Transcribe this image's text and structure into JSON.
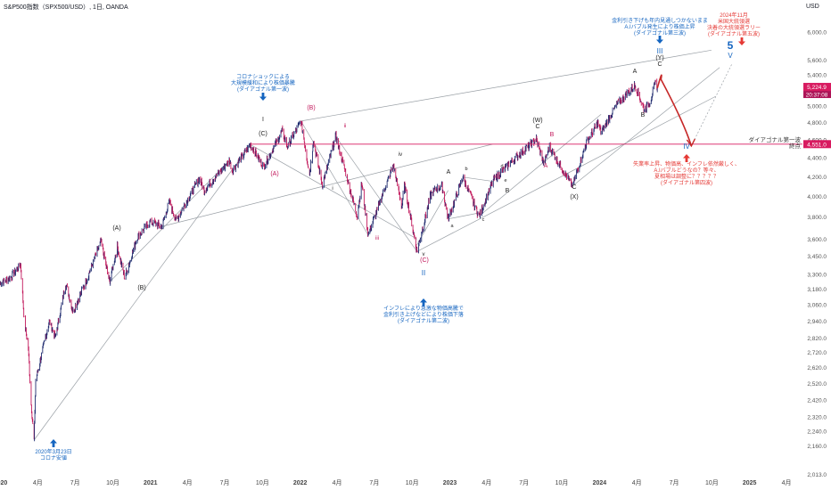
{
  "header": {
    "title": "S&P500指数（SPX500/USD）, 1日, OANDA",
    "currency": "USD"
  },
  "colors": {
    "candle_up": "#1e2a6e",
    "candle_down": "#c2185b",
    "horizontal_line": "#d81b60",
    "blue_annotation": "#1565c0",
    "red_annotation": "#e53935",
    "wave_line": "#c2185b",
    "gray_line": "#9aa0a6"
  },
  "price_badges": {
    "current": "5,224.9",
    "countdown": "20:37:08",
    "level": "4,551.0"
  },
  "line_label": "ダイアゴナル第一波\n終点",
  "annotations": [
    {
      "id": "covid",
      "lines": [
        "2020年3月23日",
        "コロナ安値"
      ],
      "color": "blue"
    },
    {
      "id": "wave1",
      "lines": [
        "コロナショックによる",
        "大規模緩和により株価暴騰",
        "(ダイアゴナル第一波)"
      ],
      "color": "blue"
    },
    {
      "id": "wave2",
      "lines": [
        "インフレにより急激な物価高騰で",
        "金利引き上げなどにより株価下落",
        "(ダイアゴナル第二波)"
      ],
      "color": "blue"
    },
    {
      "id": "wave3",
      "lines": [
        "金利引き下げも年内見通しつかないまま",
        "A.Iバブル発生により株価上昇",
        "(ダイアゴナル第三波)"
      ],
      "color": "blue"
    },
    {
      "id": "wave4",
      "lines": [
        "失業率上昇、物価高、インフレ依然厳しく、",
        "A.Iバブルどうなの？等々、",
        "夏相場は調整に？？？？？",
        "(ダイアゴナル第四波)"
      ],
      "color": "red"
    },
    {
      "id": "wave5",
      "lines": [
        "2024年11月",
        "米国大統領選",
        "決着の大統領選ラリー",
        "(ダイアゴナル第五波)"
      ],
      "color": "red"
    }
  ],
  "wave_labels": [
    "(A)",
    "(B)",
    "I",
    "(C)",
    "(A)",
    "(B)",
    "i",
    "ii",
    "iii",
    "iv",
    "v",
    "(C)",
    "II",
    "A",
    "b",
    "a",
    "c",
    "d",
    "e",
    "B",
    "(W)",
    "C",
    "B",
    "A",
    "C",
    "(X)",
    "A",
    "B",
    "III",
    "(Y)",
    "C",
    "IV",
    "5",
    "V"
  ],
  "chart_data": {
    "type": "line",
    "title": "S&P500指数（SPX500/USD）, 1日, OANDA",
    "ylabel": "USD",
    "y_scale": "log",
    "ylim": [
      1980,
      6300
    ],
    "xlim": [
      "2019-12-31",
      "2025-05-10"
    ],
    "yticks": [
      2013.0,
      2160.0,
      2240.0,
      2320.0,
      2420.0,
      2520.0,
      2620.0,
      2720.0,
      2820.0,
      2940.0,
      3060.0,
      3180.0,
      3300.0,
      3450.0,
      3600.0,
      3800.0,
      4000.0,
      4200.0,
      4400.0,
      4600.0,
      4800.0,
      5000.0,
      5200.0,
      5400.0,
      5600.0,
      6000.0
    ],
    "ytick_labels": [
      "2,013.0",
      "2,160.0",
      "2,240.0",
      "2,320.0",
      "2,420.0",
      "2,520.0",
      "2,620.0",
      "2,720.0",
      "2,820.0",
      "2,940.0",
      "3,060.0",
      "3,180.0",
      "3,300.0",
      "3,450.0",
      "3,600.0",
      "3,800.0",
      "4,000.0",
      "4,200.0",
      "4,400.0",
      "4,600.0",
      "4,800.0",
      "5,000.0",
      "5,200.0",
      "5,400.0",
      "5,600.0",
      "6,000.0"
    ],
    "xticks": [
      {
        "date": "2020-01-01",
        "label": "2020",
        "bold": true
      },
      {
        "date": "2020-04-01",
        "label": "4月",
        "bold": false
      },
      {
        "date": "2020-07-01",
        "label": "7月",
        "bold": false
      },
      {
        "date": "2020-10-01",
        "label": "10月",
        "bold": false
      },
      {
        "date": "2021-01-01",
        "label": "2021",
        "bold": true
      },
      {
        "date": "2021-04-01",
        "label": "4月",
        "bold": false
      },
      {
        "date": "2021-07-01",
        "label": "7月",
        "bold": false
      },
      {
        "date": "2021-10-01",
        "label": "10月",
        "bold": false
      },
      {
        "date": "2022-01-01",
        "label": "2022",
        "bold": true
      },
      {
        "date": "2022-04-01",
        "label": "4月",
        "bold": false
      },
      {
        "date": "2022-07-01",
        "label": "7月",
        "bold": false
      },
      {
        "date": "2022-10-01",
        "label": "10月",
        "bold": false
      },
      {
        "date": "2023-01-01",
        "label": "2023",
        "bold": true
      },
      {
        "date": "2023-04-01",
        "label": "4月",
        "bold": false
      },
      {
        "date": "2023-07-01",
        "label": "7月",
        "bold": false
      },
      {
        "date": "2023-10-01",
        "label": "10月",
        "bold": false
      },
      {
        "date": "2024-01-01",
        "label": "2024",
        "bold": true
      },
      {
        "date": "2024-04-01",
        "label": "4月",
        "bold": false
      },
      {
        "date": "2024-07-01",
        "label": "7月",
        "bold": false
      },
      {
        "date": "2024-10-01",
        "label": "10月",
        "bold": false
      },
      {
        "date": "2025-01-01",
        "label": "2025",
        "bold": true
      },
      {
        "date": "2025-04-01",
        "label": "4月",
        "bold": false
      }
    ],
    "price_path": [
      [
        "2019-12-31",
        3230
      ],
      [
        "2020-01-28",
        3280
      ],
      [
        "2020-02-19",
        3386
      ],
      [
        "2020-02-28",
        2950
      ],
      [
        "2020-03-09",
        2750
      ],
      [
        "2020-03-16",
        2390
      ],
      [
        "2020-03-23",
        2191
      ],
      [
        "2020-03-27",
        2540
      ],
      [
        "2020-04-29",
        2940
      ],
      [
        "2020-05-14",
        2820
      ],
      [
        "2020-06-08",
        3232
      ],
      [
        "2020-06-26",
        3010
      ],
      [
        "2020-07-31",
        3270
      ],
      [
        "2020-09-02",
        3580
      ],
      [
        "2020-09-23",
        3237
      ],
      [
        "2020-10-12",
        3530
      ],
      [
        "2020-10-30",
        3270
      ],
      [
        "2020-11-30",
        3620
      ],
      [
        "2020-12-31",
        3756
      ],
      [
        "2021-01-29",
        3714
      ],
      [
        "2021-02-16",
        3950
      ],
      [
        "2021-03-04",
        3770
      ],
      [
        "2021-04-30",
        4180
      ],
      [
        "2021-05-12",
        4063
      ],
      [
        "2021-07-13",
        4370
      ],
      [
        "2021-07-19",
        4260
      ],
      [
        "2021-09-02",
        4545
      ],
      [
        "2021-10-04",
        4300
      ],
      [
        "2021-11-18",
        4700
      ],
      [
        "2021-12-01",
        4520
      ],
      [
        "2022-01-03",
        4818
      ],
      [
        "2022-01-24",
        4222
      ],
      [
        "2022-02-02",
        4590
      ],
      [
        "2022-02-24",
        4114
      ],
      [
        "2022-03-29",
        4637
      ],
      [
        "2022-05-20",
        3810
      ],
      [
        "2022-05-31",
        4130
      ],
      [
        "2022-06-16",
        3636
      ],
      [
        "2022-08-16",
        4325
      ],
      [
        "2022-09-06",
        3900
      ],
      [
        "2022-09-12",
        4120
      ],
      [
        "2022-10-13",
        3491
      ],
      [
        "2022-11-15",
        4010
      ],
      [
        "2022-11-30",
        4080
      ],
      [
        "2022-12-13",
        4100
      ],
      [
        "2022-12-28",
        3783
      ],
      [
        "2023-02-02",
        4195
      ],
      [
        "2023-03-13",
        3808
      ],
      [
        "2023-04-18",
        4170
      ],
      [
        "2023-06-15",
        4420
      ],
      [
        "2023-07-31",
        4607
      ],
      [
        "2023-08-18",
        4335
      ],
      [
        "2023-09-01",
        4515
      ],
      [
        "2023-10-27",
        4103
      ],
      [
        "2023-11-30",
        4567
      ],
      [
        "2023-12-28",
        4793
      ],
      [
        "2024-01-05",
        4680
      ],
      [
        "2024-02-12",
        5020
      ],
      [
        "2024-03-28",
        5264
      ],
      [
        "2024-04-19",
        4953
      ],
      [
        "2024-05-02",
        5040
      ],
      [
        "2024-05-17",
        5310
      ],
      [
        "2024-05-21",
        5225
      ]
    ],
    "current_price": 5224.9,
    "horizontal_level": 4551.0,
    "forecast_path": [
      [
        "2024-05-21",
        5225
      ],
      [
        "2024-05-30",
        5340
      ],
      [
        "2024-07-08",
        4890
      ],
      [
        "2024-08-12",
        4530
      ]
    ]
  }
}
